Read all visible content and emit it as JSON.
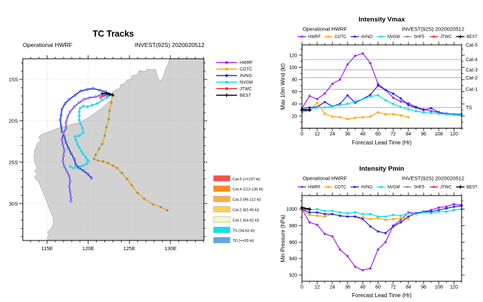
{
  "map": {
    "title": "TC Tracks",
    "subtitle_left": "Operational HWRF",
    "subtitle_right": "INVEST(92S) 2020020512",
    "lon_range": [
      112.05,
      134.05
    ],
    "lat_range": [
      12.5,
      34.45
    ],
    "lon_ticks": [
      {
        "value": 115,
        "label": "115E"
      },
      {
        "value": 120,
        "label": "120E"
      },
      {
        "value": 125,
        "label": "125E"
      },
      {
        "value": 130,
        "label": "130E"
      }
    ],
    "lat_ticks": [
      {
        "value": 15,
        "label": "15S"
      },
      {
        "value": 20,
        "label": "20S"
      },
      {
        "value": 25,
        "label": "25S"
      },
      {
        "value": 30,
        "label": "30S"
      }
    ],
    "land_color": "#d2d2d2",
    "coast_color": "#8a8a8a",
    "coastline": [
      [
        129.9,
        12.5
      ],
      [
        129.7,
        13.1
      ],
      [
        129.35,
        13.9
      ],
      [
        129.15,
        14.6
      ],
      [
        128.9,
        15.1
      ],
      [
        128.55,
        15.05
      ],
      [
        128.35,
        14.4
      ],
      [
        128.15,
        13.75
      ],
      [
        127.7,
        13.85
      ],
      [
        127.25,
        13.75
      ],
      [
        126.8,
        14.05
      ],
      [
        126.25,
        13.9
      ],
      [
        125.9,
        14.45
      ],
      [
        125.35,
        14.5
      ],
      [
        125.15,
        15.05
      ],
      [
        124.75,
        15.05
      ],
      [
        124.35,
        15.55
      ],
      [
        123.95,
        15.6
      ],
      [
        123.8,
        16.1
      ],
      [
        123.4,
        16.2
      ],
      [
        123.0,
        16.45
      ],
      [
        122.8,
        16.85
      ],
      [
        123.1,
        17.25
      ],
      [
        122.65,
        17.6
      ],
      [
        122.2,
        18.0
      ],
      [
        121.5,
        18.55
      ],
      [
        120.7,
        19.15
      ],
      [
        119.8,
        19.75
      ],
      [
        118.9,
        20.2
      ],
      [
        118.0,
        20.45
      ],
      [
        117.0,
        20.7
      ],
      [
        116.2,
        20.95
      ],
      [
        115.3,
        21.3
      ],
      [
        114.4,
        21.6
      ],
      [
        114.0,
        21.95
      ],
      [
        114.2,
        22.4
      ],
      [
        113.8,
        22.7
      ],
      [
        113.5,
        23.6
      ],
      [
        113.4,
        24.4
      ],
      [
        113.55,
        25.2
      ],
      [
        113.8,
        25.7
      ],
      [
        113.45,
        26.05
      ],
      [
        113.8,
        26.4
      ],
      [
        113.45,
        26.85
      ],
      [
        114.0,
        27.4
      ],
      [
        114.25,
        28.1
      ],
      [
        114.6,
        28.85
      ],
      [
        115.0,
        29.8
      ],
      [
        115.3,
        30.7
      ],
      [
        115.7,
        31.6
      ],
      [
        115.8,
        32.3
      ],
      [
        115.5,
        33.0
      ],
      [
        115.05,
        33.45
      ],
      [
        115.25,
        33.75
      ],
      [
        115.05,
        34.05
      ],
      [
        115.1,
        34.45
      ],
      [
        134.05,
        34.45
      ],
      [
        134.05,
        12.5
      ]
    ],
    "legend": [
      {
        "label": "HWRF",
        "color": "#A020F0"
      },
      {
        "label": "COTC",
        "color": "#FFA500"
      },
      {
        "label": "AVNO",
        "color": "#2424DD"
      },
      {
        "label": "NVGM",
        "color": "#00DDEE"
      },
      {
        "label": "JTWC",
        "color": "#EE2C2C"
      },
      {
        "label": "BEST",
        "color": "#000000"
      }
    ],
    "cat_legend": [
      {
        "label": "Cat-5 (>=137 kt)",
        "color": "#F4504E"
      },
      {
        "label": "Cat-4 (113-136 kt)",
        "color": "#FF8C1A"
      },
      {
        "label": "Cat-3 (96-112 kt)",
        "color": "#FFAE4D"
      },
      {
        "label": "Cat-2 (83-95 kt)",
        "color": "#FFD24D"
      },
      {
        "label": "Cat-1 (64-82 kt)",
        "color": "#FBF6C0"
      },
      {
        "label": "TS (34-63 kt)",
        "color": "#00E8E8"
      },
      {
        "label": "TD (<=33 kt)",
        "color": "#5DA9E8"
      }
    ],
    "tracks": [
      {
        "name": "JTWC",
        "color": "#EE2C2C",
        "marker": "dot",
        "marker_color": "#ff7a7a",
        "points": [
          [
            122.9,
            16.8
          ],
          [
            122.4,
            16.9
          ],
          [
            121.9,
            17.0
          ],
          [
            121.5,
            17.2
          ]
        ]
      },
      {
        "name": "COTC",
        "color": "#FFA500",
        "marker": "dot",
        "marker_color": "#5b9bd0",
        "points": [
          [
            122.9,
            16.8
          ],
          [
            122.8,
            17.8
          ],
          [
            122.6,
            18.8
          ],
          [
            122.5,
            19.8
          ],
          [
            122.2,
            20.8
          ],
          [
            122.0,
            21.8
          ],
          [
            121.7,
            22.8
          ],
          [
            121.3,
            23.4
          ],
          [
            120.9,
            24.1
          ],
          [
            120.7,
            24.6
          ],
          [
            121.2,
            24.8
          ],
          [
            121.8,
            24.9
          ],
          [
            122.4,
            25.1
          ],
          [
            123.0,
            25.4
          ],
          [
            123.5,
            25.7
          ],
          [
            124.1,
            26.3
          ],
          [
            124.7,
            27.0
          ],
          [
            125.3,
            27.8
          ],
          [
            126.0,
            28.7
          ],
          [
            126.8,
            29.4
          ],
          [
            127.9,
            30.1
          ],
          [
            128.8,
            30.4
          ],
          [
            129.6,
            30.8
          ]
        ]
      },
      {
        "name": "NVGM",
        "color": "#00DDEE",
        "marker": "dot",
        "marker_color": "#59c8e8",
        "points": [
          [
            122.9,
            16.8
          ],
          [
            122.3,
            17.2
          ],
          [
            121.7,
            17.5
          ],
          [
            121.1,
            17.9
          ],
          [
            120.5,
            18.1
          ],
          [
            119.9,
            18.3
          ],
          [
            119.4,
            18.2
          ],
          [
            119.0,
            18.5
          ],
          [
            118.9,
            18.9
          ],
          [
            118.9,
            19.4
          ],
          [
            118.9,
            19.9
          ],
          [
            119.1,
            20.4
          ],
          [
            119.3,
            20.9
          ],
          [
            119.4,
            21.4
          ],
          [
            118.9,
            21.8
          ],
          [
            118.4,
            21.9
          ],
          [
            118.5,
            22.3
          ],
          [
            118.7,
            22.8
          ],
          [
            118.9,
            23.2
          ],
          [
            119.2,
            23.7
          ],
          [
            119.4,
            24.0
          ],
          [
            119.7,
            24.4
          ],
          [
            119.9,
            24.7
          ],
          [
            120.0,
            24.9
          ],
          [
            119.8,
            25.2
          ],
          [
            119.4,
            25.4
          ],
          [
            119.0,
            25.5
          ],
          [
            118.6,
            25.6
          ],
          [
            118.2,
            25.7
          ],
          [
            117.8,
            25.5
          ]
        ]
      },
      {
        "name": "AVNO",
        "color": "#2424DD",
        "marker": "dot",
        "marker_color": "#4fa8e8",
        "points": [
          [
            122.9,
            16.8
          ],
          [
            122.1,
            16.5
          ],
          [
            121.4,
            16.3
          ],
          [
            120.6,
            16.1
          ],
          [
            119.9,
            16.2
          ],
          [
            119.1,
            16.4
          ],
          [
            118.4,
            16.9
          ],
          [
            117.7,
            17.4
          ],
          [
            117.2,
            17.9
          ],
          [
            116.8,
            18.6
          ],
          [
            116.7,
            19.3
          ],
          [
            116.6,
            19.9
          ],
          [
            116.7,
            20.6
          ],
          [
            116.8,
            21.3
          ],
          [
            117.1,
            21.9
          ],
          [
            117.3,
            22.6
          ],
          [
            117.6,
            23.3
          ],
          [
            117.9,
            23.9
          ],
          [
            118.3,
            24.6
          ],
          [
            118.5,
            25.3
          ],
          [
            118.9,
            25.7
          ],
          [
            119.4,
            26.0
          ],
          [
            119.9,
            26.4
          ],
          [
            120.4,
            26.9
          ]
        ]
      },
      {
        "name": "HWRF",
        "color": "#A020F0",
        "marker": "dot",
        "marker_color": "#45d0e8",
        "points": [
          [
            122.9,
            16.8
          ],
          [
            122.2,
            16.9
          ],
          [
            121.5,
            16.9
          ],
          [
            120.9,
            17.1
          ],
          [
            120.2,
            17.2
          ],
          [
            119.5,
            17.4
          ],
          [
            118.9,
            17.8
          ],
          [
            118.3,
            18.3
          ],
          [
            117.8,
            18.9
          ],
          [
            117.5,
            19.5
          ],
          [
            117.3,
            20.2
          ],
          [
            117.3,
            20.9
          ],
          [
            117.0,
            21.5
          ],
          [
            116.8,
            22.2
          ],
          [
            116.9,
            22.9
          ],
          [
            117.1,
            23.5
          ],
          [
            117.0,
            24.2
          ],
          [
            116.9,
            24.9
          ],
          [
            117.1,
            25.5
          ],
          [
            117.4,
            26.1
          ],
          [
            117.7,
            26.7
          ],
          [
            117.8,
            27.3
          ],
          [
            117.7,
            27.9
          ],
          [
            117.8,
            28.6
          ],
          [
            117.9,
            29.3
          ],
          [
            117.9,
            29.7
          ]
        ]
      },
      {
        "name": "BEST",
        "color": "#000000",
        "marker": "plus",
        "marker_color": "#000000",
        "points": [
          [
            121.7,
            16.7
          ],
          [
            122.2,
            16.7
          ],
          [
            122.6,
            16.8
          ],
          [
            123.0,
            16.9
          ]
        ]
      }
    ]
  },
  "chart_data": [
    {
      "type": "line",
      "title": "Intensity Vmax",
      "subtitle_left": "Operational HWRF",
      "subtitle_right": "INVEST(92S) 2020020512",
      "xlabel": "Forecast Lead Time (Hr)",
      "ylabel": "Max 10m Wind (kt)",
      "xlim": [
        0,
        126
      ],
      "ylim": [
        0,
        137
      ],
      "x_step_hours": 6,
      "x_ticks": [
        0,
        12,
        24,
        36,
        48,
        60,
        72,
        84,
        96,
        108,
        120
      ],
      "y_ticks": [
        20,
        40,
        60,
        80,
        100,
        120
      ],
      "y_minor_step": 10,
      "gridlines": [
        {
          "value": 34,
          "label": "TS"
        },
        {
          "value": 64,
          "label": "Cat-1"
        },
        {
          "value": 83,
          "label": "Cat-2"
        },
        {
          "value": 96,
          "label": "Cat-3"
        },
        {
          "value": 113,
          "label": "Cat-4"
        },
        {
          "value": 137,
          "label": "Cat-5"
        }
      ],
      "legend_position": "top",
      "series": [
        {
          "name": "HWRF",
          "color": "#A020F0",
          "marker": "square",
          "values": [
            33,
            53,
            48,
            57,
            73,
            80,
            105,
            119,
            123,
            107,
            73,
            63,
            50,
            44,
            41,
            35,
            31,
            28,
            26,
            23,
            22,
            21
          ]
        },
        {
          "name": "COTC",
          "color": "#FFA500",
          "marker": "square",
          "values": [
            26,
            29,
            42,
            24,
            19,
            18,
            15,
            17,
            18,
            19,
            26,
            23,
            23,
            21,
            18
          ]
        },
        {
          "name": "AVNO",
          "color": "#2424DD",
          "marker": "square",
          "values": [
            32,
            34,
            35,
            43,
            36,
            40,
            54,
            42,
            48,
            55,
            70,
            63,
            57,
            49,
            38,
            34,
            30,
            33,
            26,
            24,
            23,
            23
          ]
        },
        {
          "name": "NVGM",
          "color": "#00DDEE",
          "marker": "square",
          "values": [
            27,
            30,
            34,
            34,
            36,
            38,
            40,
            44,
            48,
            52,
            54,
            46,
            40,
            35,
            31,
            28,
            26,
            25,
            24,
            23,
            22,
            22
          ]
        },
        {
          "name": "SHF5",
          "color": "#909090",
          "marker": "square",
          "values": []
        },
        {
          "name": "JTWC",
          "color": "#EE2C2C",
          "marker": "square",
          "values": [
            30,
            30
          ]
        },
        {
          "name": "BEST",
          "color": "#000000",
          "marker": "plus",
          "values": [
            30,
            30
          ]
        }
      ]
    },
    {
      "type": "line",
      "title": "Intensity Pmin",
      "subtitle_left": "Operational HWRF",
      "subtitle_right": "INVEST(92S) 2020020512",
      "xlabel": "Forecast Lead Time (Hr)",
      "ylabel": "Min Pressure (hPa)",
      "xlim": [
        0,
        126
      ],
      "ylim": [
        912.5,
        1016.5
      ],
      "x_step_hours": 6,
      "x_ticks": [
        0,
        12,
        24,
        36,
        48,
        60,
        72,
        84,
        96,
        108,
        120
      ],
      "y_ticks": [
        920,
        940,
        960,
        980,
        1000
      ],
      "y_minor_step": 10,
      "gridlines": [],
      "legend_position": "top",
      "series": [
        {
          "name": "HWRF",
          "color": "#A020F0",
          "marker": "square",
          "values": [
            1000,
            984,
            981,
            970,
            967,
            951,
            943,
            930,
            926,
            928,
            951,
            960,
            980,
            987,
            996,
            995,
            997,
            999,
            1002,
            1003,
            1006,
            1005
          ]
        },
        {
          "name": "COTC",
          "color": "#FFA500",
          "marker": "square",
          "values": [
            1000,
            993,
            992,
            991,
            994,
            992,
            991,
            991,
            990,
            988,
            989,
            987,
            988,
            989,
            988
          ]
        },
        {
          "name": "AVNO",
          "color": "#2424DD",
          "marker": "square",
          "values": [
            1000,
            996,
            996,
            994,
            994,
            992,
            991,
            991,
            988,
            979,
            973,
            971,
            979,
            984,
            991,
            995,
            997,
            997,
            999,
            1001,
            1003,
            1004
          ]
        },
        {
          "name": "NVGM",
          "color": "#00DDEE",
          "marker": "square",
          "values": [
            1000,
            999,
            1000,
            998,
            998,
            996,
            995,
            996,
            994,
            994,
            991,
            991,
            993,
            992,
            995,
            994,
            996,
            995,
            997,
            997,
            999,
            1000
          ]
        },
        {
          "name": "SHF5",
          "color": "#909090",
          "marker": "square",
          "values": []
        },
        {
          "name": "JTWC",
          "color": "#EE2C2C",
          "marker": "square",
          "values": [
            1000,
            1000
          ]
        },
        {
          "name": "BEST",
          "color": "#000000",
          "marker": "plus",
          "values": [
            1002,
            1000
          ]
        }
      ]
    }
  ]
}
